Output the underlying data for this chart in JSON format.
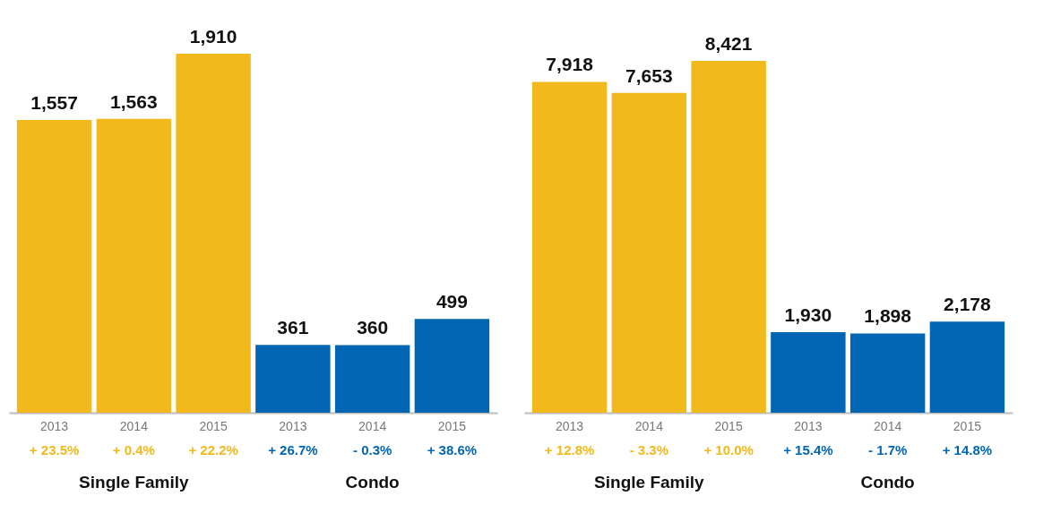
{
  "chart_data": [
    {
      "type": "bar",
      "categories": [
        "2013",
        "2014",
        "2015",
        "2013",
        "2014",
        "2015"
      ],
      "series": [
        {
          "color": "#f2b91c",
          "values": [
            1557,
            1563,
            1910,
            null,
            null,
            null
          ],
          "value_labels": [
            "1,557",
            "1,563",
            "1,910",
            null,
            null,
            null
          ]
        },
        {
          "color": "#0066b3",
          "values": [
            null,
            null,
            null,
            361,
            360,
            499
          ],
          "value_labels": [
            null,
            null,
            null,
            "361",
            "360",
            "499"
          ]
        }
      ],
      "annotations": [
        "+ 23.5%",
        "+ 0.4%",
        "+ 22.2%",
        "+ 26.7%",
        "- 0.3%",
        "+ 38.6%",
        "Single Family",
        "Condo"
      ]
    },
    {
      "type": "bar",
      "categories": [
        "2013",
        "2014",
        "2015",
        "2013",
        "2014",
        "2015"
      ],
      "series": [
        {
          "color": "#f2b91c",
          "values": [
            7918,
            7653,
            8421,
            null,
            null,
            null
          ],
          "value_labels": [
            "7,918",
            "7,653",
            "8,421",
            null,
            null,
            null
          ]
        },
        {
          "color": "#0066b3",
          "values": [
            null,
            null,
            null,
            1930,
            1898,
            2178
          ],
          "value_labels": [
            null,
            null,
            null,
            "1,930",
            "1,898",
            "2,178"
          ]
        }
      ],
      "annotations": [
        "+ 12.8%",
        "- 3.3%",
        "+ 10.0%",
        "+ 15.4%",
        "- 1.7%",
        "+ 14.8%",
        "Single Family",
        "Condo"
      ]
    }
  ]
}
